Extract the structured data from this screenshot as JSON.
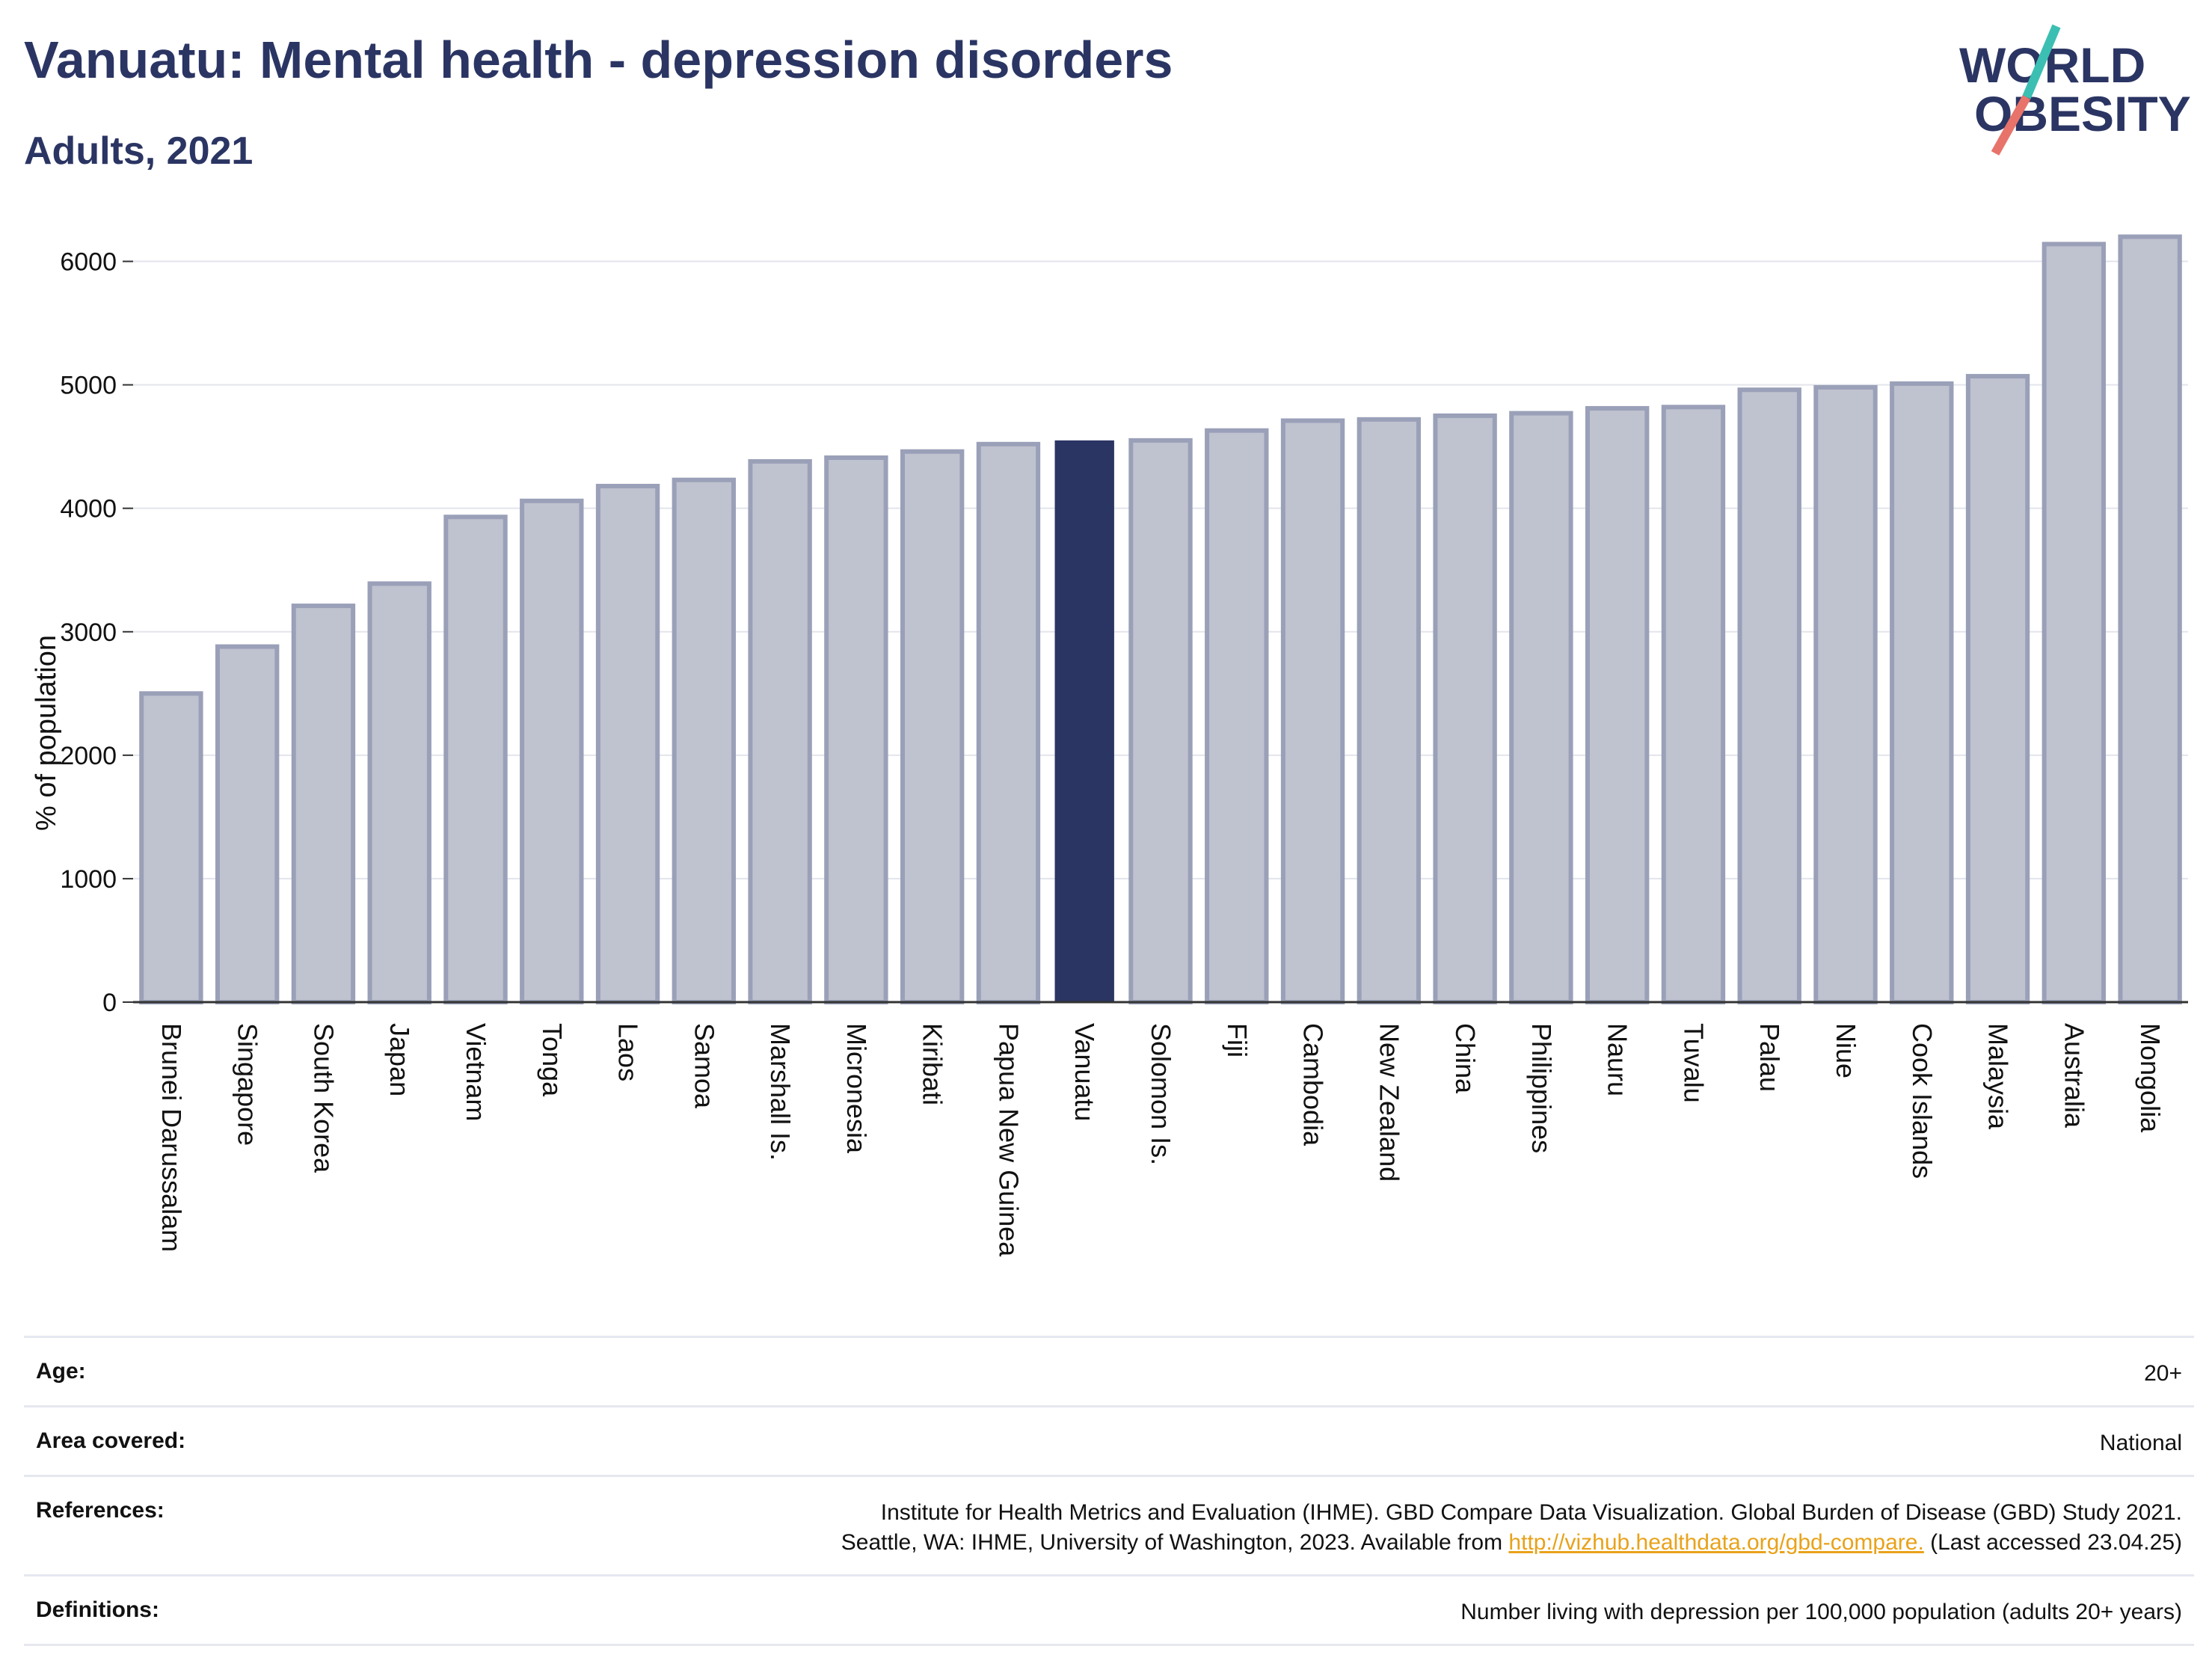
{
  "header": {
    "title": "Vanuatu: Mental health - depression disorders",
    "subtitle": "Adults, 2021"
  },
  "logo": {
    "line1": "WORLD",
    "line2": "OBESITY",
    "accent_teal": "#3bbfb2",
    "accent_coral": "#e8736a",
    "text_color": "#2b3563"
  },
  "colors": {
    "bar": "#bfc2cf",
    "bar_stroke": "#9aa0b8",
    "highlight": "#2b3563",
    "grid": "#e3e5ec",
    "axis": "#333333"
  },
  "chart_data": {
    "type": "bar",
    "title": "Vanuatu: Mental health - depression disorders",
    "subtitle": "Adults, 2021",
    "ylabel": "% of population",
    "xlabel": "",
    "ylim": [
      0,
      6300
    ],
    "yticks": [
      0,
      1000,
      2000,
      3000,
      4000,
      5000,
      6000
    ],
    "grid": true,
    "highlight": "Vanuatu",
    "categories": [
      "Brunei Darussalam",
      "Singapore",
      "South Korea",
      "Japan",
      "Vietnam",
      "Tonga",
      "Laos",
      "Samoa",
      "Marshall Is.",
      "Micronesia",
      "Kiribati",
      "Papua New Guinea",
      "Vanuatu",
      "Solomon Is.",
      "Fiji",
      "Cambodia",
      "New Zealand",
      "China",
      "Philippines",
      "Nauru",
      "Tuvalu",
      "Palau",
      "Niue",
      "Cook Islands",
      "Malaysia",
      "Australia",
      "Mongolia"
    ],
    "values": [
      2500,
      2880,
      3210,
      3390,
      3930,
      4060,
      4180,
      4230,
      4380,
      4410,
      4460,
      4520,
      4550,
      4550,
      4630,
      4710,
      4720,
      4750,
      4770,
      4810,
      4820,
      4960,
      4980,
      5010,
      5070,
      6140,
      6200
    ]
  },
  "footer": {
    "age": {
      "label": "Age:",
      "value": "20+"
    },
    "area": {
      "label": "Area covered:",
      "value": "National"
    },
    "references": {
      "label": "References:",
      "line1": "Institute for Health Metrics and Evaluation (IHME). GBD Compare Data Visualization. Global Burden of Disease (GBD) Study 2021.",
      "line2_prefix": "Seattle, WA: IHME, University of Washington, 2023. Available from",
      "link": "http://vizhub.healthdata.org/gbd-compare.",
      "line2_suffix": "(Last accessed 23.04.25)"
    },
    "definitions": {
      "label": "Definitions:",
      "value": "Number living with depression per 100,000 population (adults 20+ years)"
    }
  }
}
